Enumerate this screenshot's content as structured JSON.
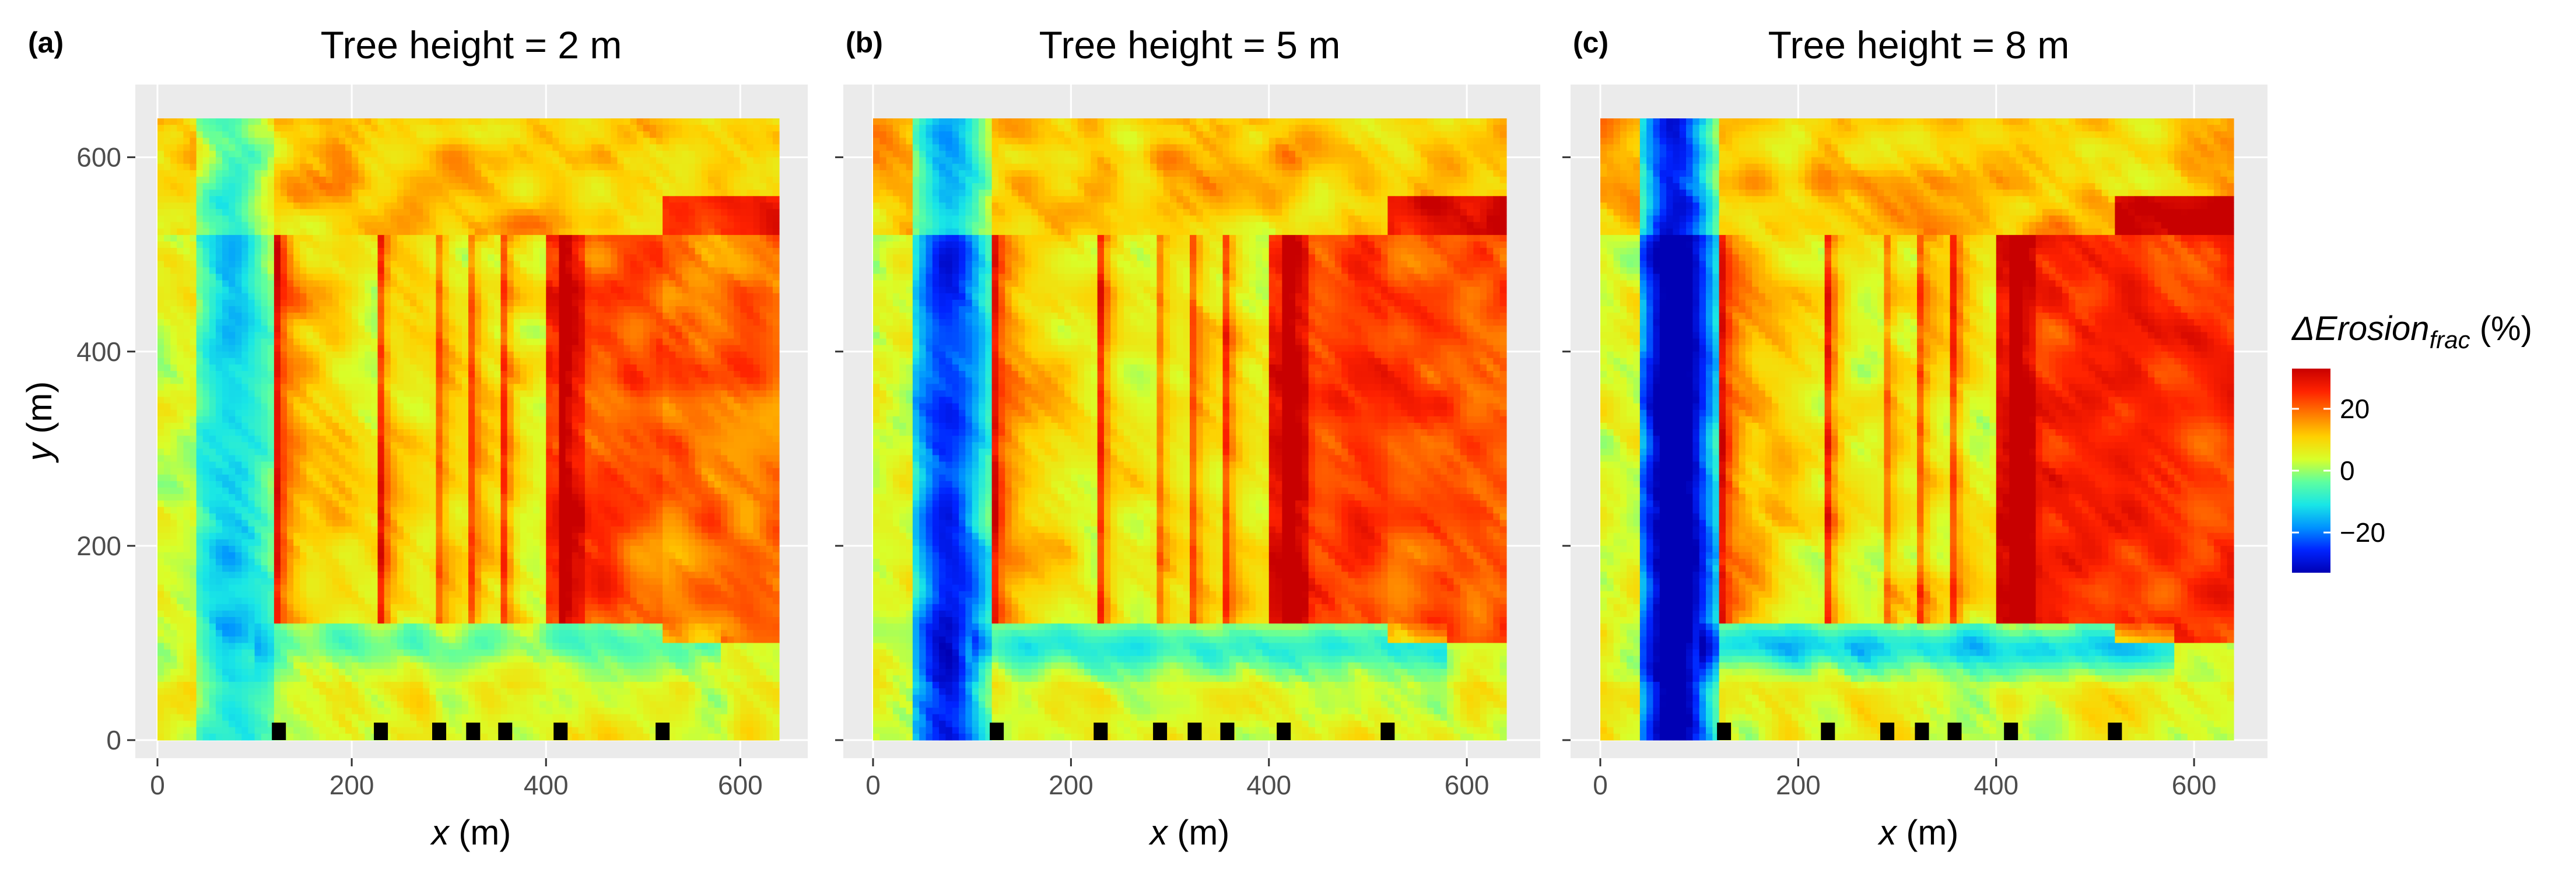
{
  "chart_data": {
    "type": "heatmap",
    "shared": {
      "xlabel_var": "x",
      "xlabel_unit": " (m)",
      "ylabel_var": "y",
      "ylabel_unit": " (m)",
      "xlim": [
        0,
        640
      ],
      "ylim": [
        0,
        640
      ],
      "xticks": [
        0,
        200,
        400,
        600
      ],
      "yticks": [
        0,
        200,
        400,
        600
      ],
      "building_extent": {
        "x": [
          120,
          520
        ],
        "y": [
          120,
          520
        ]
      },
      "row_divisions_x": [
        230,
        285,
        320,
        355,
        415
      ],
      "tree_markers_x": [
        125,
        230,
        290,
        325,
        358,
        415,
        520
      ]
    },
    "panels": [
      {
        "letter": "(a)",
        "title": "Tree height = 2 m",
        "tree_height_m": 2
      },
      {
        "letter": "(b)",
        "title": "Tree height = 5 m",
        "tree_height_m": 5
      },
      {
        "letter": "(c)",
        "title": "Tree height = 8 m",
        "tree_height_m": 8
      }
    ],
    "colorbar": {
      "title_main": "ΔErosion",
      "title_sub": "frac",
      "title_unit": " (%)",
      "range": [
        -33,
        33
      ],
      "ticks": [
        20,
        0,
        -20
      ],
      "tick_labels": [
        "20",
        "0",
        "−20"
      ],
      "colors": [
        "#c80000",
        "#ff2200",
        "#ff7a00",
        "#ffd000",
        "#d8ff2a",
        "#5dffa0",
        "#19e6e6",
        "#0093ff",
        "#0024ff",
        "#0000b4"
      ]
    }
  }
}
